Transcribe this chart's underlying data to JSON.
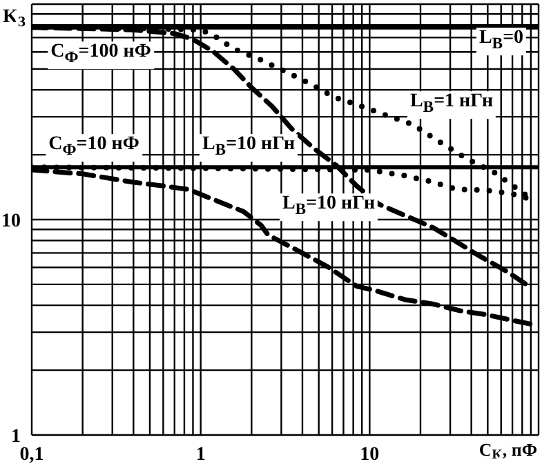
{
  "chart_data": {
    "type": "line",
    "xlabel": "C$_{K}$, пФ",
    "ylabel": "K$_{З}$",
    "log": "xy",
    "grid": true,
    "legend": false,
    "marker": "none",
    "xlim": [
      0.1,
      100
    ],
    "ylim": [
      1,
      100
    ],
    "xticks": [
      {
        "value": 0.1,
        "label": "0,1"
      },
      {
        "value": 0.2,
        "label": null
      },
      {
        "value": 0.3,
        "label": null
      },
      {
        "value": 0.4,
        "label": null
      },
      {
        "value": 0.5,
        "label": null
      },
      {
        "value": 0.6,
        "label": null
      },
      {
        "value": 0.7,
        "label": null
      },
      {
        "value": 0.8,
        "label": null
      },
      {
        "value": 0.9,
        "label": null
      },
      1,
      {
        "value": 2,
        "label": null
      },
      {
        "value": 3,
        "label": null
      },
      {
        "value": 4,
        "label": null
      },
      {
        "value": 5,
        "label": null
      },
      {
        "value": 6,
        "label": null
      },
      {
        "value": 7,
        "label": null
      },
      {
        "value": 8,
        "label": null
      },
      {
        "value": 9,
        "label": null
      },
      10,
      {
        "value": 20,
        "label": null
      },
      {
        "value": 30,
        "label": null
      },
      {
        "value": 40,
        "label": null
      },
      {
        "value": 50,
        "label": null
      },
      {
        "value": 60,
        "label": null
      },
      {
        "value": 70,
        "label": null
      },
      {
        "value": 80,
        "label": null
      },
      {
        "value": 90,
        "label": null
      },
      {
        "value": 100,
        "label": null
      }
    ],
    "yticks": [
      1,
      {
        "value": 2,
        "label": null
      },
      {
        "value": 3,
        "label": null
      },
      {
        "value": 4,
        "label": null
      },
      {
        "value": 5,
        "label": null
      },
      {
        "value": 6,
        "label": null
      },
      {
        "value": 7,
        "label": null
      },
      {
        "value": 8,
        "label": null
      },
      {
        "value": 9,
        "label": null
      },
      10,
      {
        "value": 20,
        "label": null
      },
      {
        "value": 30,
        "label": null
      },
      {
        "value": 40,
        "label": null
      },
      {
        "value": 50,
        "label": null
      },
      {
        "value": 60,
        "label": null
      },
      {
        "value": 70,
        "label": null
      },
      {
        "value": 80,
        "label": null
      },
      {
        "value": 90,
        "label": null
      },
      {
        "value": 100,
        "label": null
      }
    ],
    "series": [
      {
        "color": "#000000",
        "line_style": "solid",
        "x": [
          0.1,
          100
        ],
        "values": [
          78,
          78
        ]
      },
      {
        "color": "#000000",
        "line_style": "solid",
        "x": [
          0.1,
          100
        ],
        "values": [
          17.5,
          17.5
        ]
      },
      {
        "color": "#000000",
        "line_style": "dotted",
        "x": [
          0.1,
          0.5,
          1,
          1.18,
          1.57,
          2.28,
          3.19,
          4.39,
          6.15,
          8.1,
          11.8,
          17.9,
          26,
          37.8,
          55,
          87.7
        ],
        "values": [
          78,
          77,
          76,
          72,
          62,
          55,
          48.5,
          43,
          37,
          34.5,
          31,
          27.7,
          22.9,
          19.1,
          16.5,
          12.7
        ]
      },
      {
        "color": "#000000",
        "line_style": "dotted",
        "x": [
          0.1,
          1,
          10,
          16,
          22.4,
          33,
          48,
          69,
          84.5
        ],
        "values": [
          17.5,
          17.3,
          17,
          16,
          15.1,
          13.8,
          13.7,
          13.2,
          12.6
        ]
      },
      {
        "color": "#000000",
        "line_style": "dashed",
        "x": [
          0.1,
          0.4,
          0.7,
          0.89,
          1.18,
          1.57,
          2,
          2.64,
          3.44,
          4.64,
          6.37,
          8.4,
          11.3,
          23.6,
          32.6,
          41.6,
          66,
          87.7
        ],
        "values": [
          78,
          76,
          73,
          69,
          60.5,
          50,
          41,
          33.6,
          26.5,
          21.5,
          17.8,
          14.3,
          11.8,
          9.2,
          7.9,
          7,
          5.7,
          4.9
        ]
      },
      {
        "color": "#000000",
        "line_style": "dashed",
        "x": [
          0.1,
          0.2,
          0.4,
          0.61,
          0.845,
          1.79,
          2.28,
          2.5,
          3.85,
          5.6,
          8.4,
          10.6,
          16.2,
          23.6,
          34.5,
          49.8,
          76,
          92
        ],
        "values": [
          17,
          16.3,
          14.9,
          14.3,
          13.8,
          10.9,
          9.4,
          8.5,
          7.1,
          6.06,
          4.9,
          4.7,
          4.25,
          4.06,
          3.77,
          3.61,
          3.36,
          3.26
        ]
      }
    ],
    "annotations": [
      "C$_{Ф}$=100 нФ",
      "L$_{B}$=0",
      "L$_{B}$=1 нГн",
      "L$_{B}$=10 нГн",
      "C$_{Ф}$=10 нФ",
      "L$_{B}$=10 нГн"
    ]
  }
}
